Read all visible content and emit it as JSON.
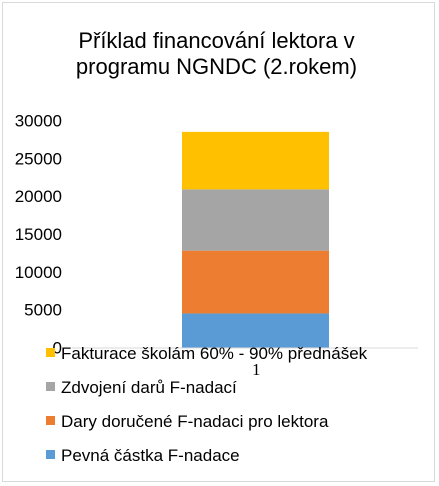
{
  "chart_data": {
    "type": "bar",
    "stacked": true,
    "title_lines": [
      "Příklad financování lektora v",
      "programu NGNDC (2.rokem)"
    ],
    "categories": [
      "1"
    ],
    "series": [
      {
        "name": "Pevná částka F-nadace",
        "values": [
          4500
        ],
        "color": "#5B9BD5"
      },
      {
        "name": "Dary doručené F-nadaci pro lektora",
        "values": [
          8300
        ],
        "color": "#ED7D31"
      },
      {
        "name": "Zdvojení darů F-nadací",
        "values": [
          8100
        ],
        "color": "#A5A5A5"
      },
      {
        "name": "Fakturace školám 60% - 90% přednášek",
        "values": [
          7600
        ],
        "color": "#FFC000"
      }
    ],
    "y_ticks": [
      0,
      5000,
      10000,
      15000,
      20000,
      25000,
      30000
    ],
    "ylim": [
      0,
      30000
    ],
    "grid": false,
    "legend_position": "bottom",
    "xlabel": "",
    "ylabel": ""
  }
}
